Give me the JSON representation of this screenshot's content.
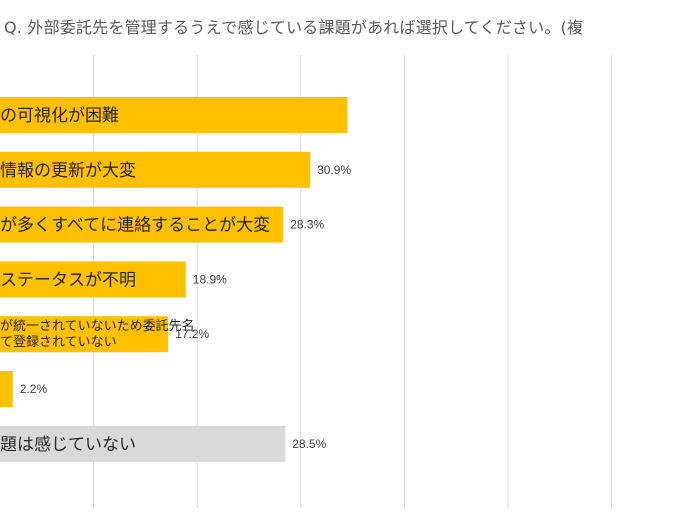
{
  "chart_data": {
    "type": "bar",
    "orientation": "horizontal",
    "title": "Q. 外部委託先を管理するうえで感じている課題があれば選択してください。(複",
    "categories": [
      [
        "の可視化が困難"
      ],
      [
        "情報の更新が大変"
      ],
      [
        "が多くすべてに連絡することが大変"
      ],
      [
        "ステータスが不明"
      ],
      [
        "が統一されていないため委託先名",
        "て登録されていない"
      ],
      [
        ""
      ],
      [
        "題は感じていない"
      ]
    ],
    "values": [
      34.5,
      30.9,
      28.3,
      18.9,
      17.2,
      2.2,
      28.5
    ],
    "value_labels": [
      "",
      "30.9%",
      "28.3%",
      "18.9%",
      "17.2%",
      "2.2%",
      "28.5%"
    ],
    "colors": [
      "#FFC000",
      "#FFC000",
      "#FFC000",
      "#FFC000",
      "#FFC000",
      "#FFC000",
      "#D9D9D9"
    ],
    "gridlines": true,
    "grid_color": "#D9D9D9"
  }
}
